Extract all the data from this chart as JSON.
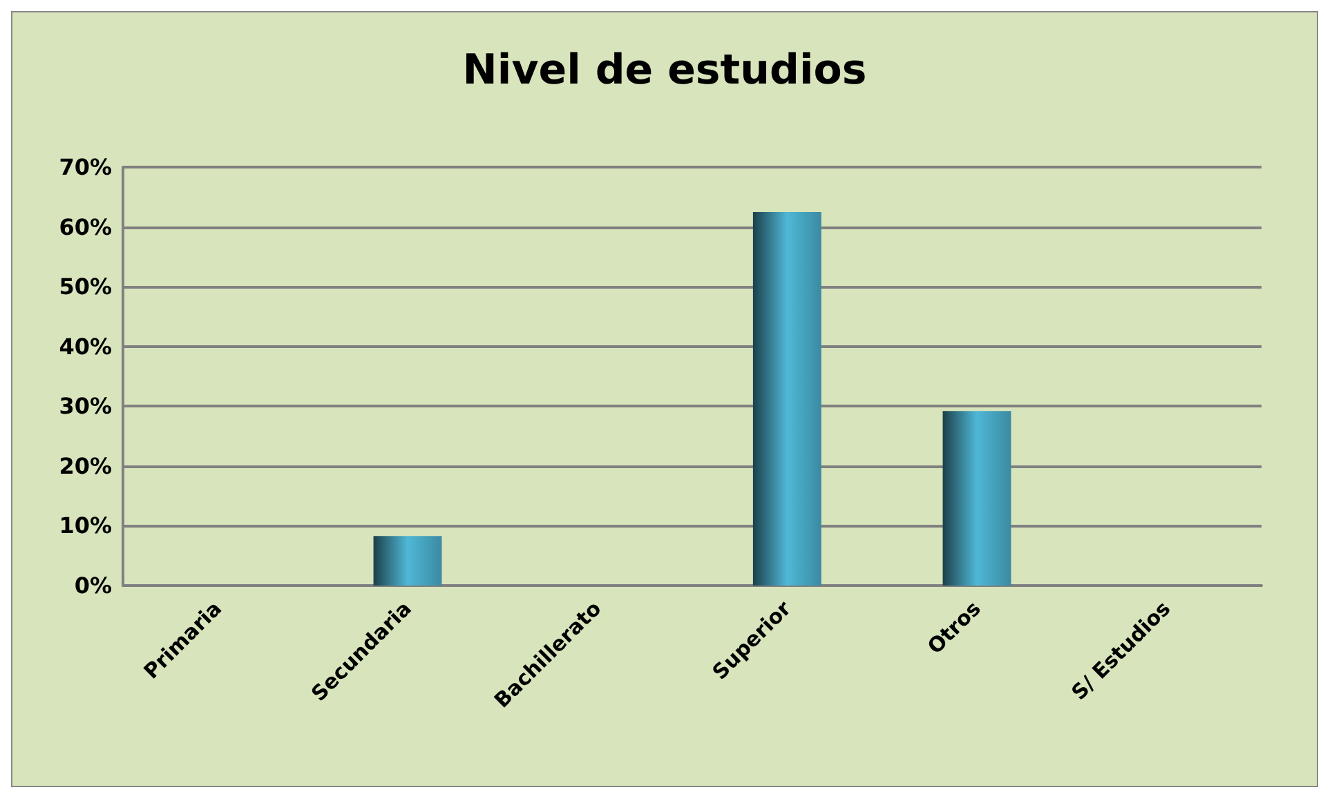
{
  "chart_data": {
    "type": "bar",
    "title": "Nivel de estudios",
    "categories": [
      "Primaria",
      "Secundaria",
      "Bachillerato",
      "Superior",
      "Otros",
      "S/ Estudios"
    ],
    "values": [
      0,
      8.3,
      0,
      62.5,
      29.2,
      0
    ],
    "color": "#4fb8d6",
    "ylim": [
      0,
      70
    ],
    "yticks": [
      {
        "value": 0,
        "label": "0%"
      },
      {
        "value": 10,
        "label": "10%"
      },
      {
        "value": 20,
        "label": "20%"
      },
      {
        "value": 30,
        "label": "30%"
      },
      {
        "value": 40,
        "label": "40%"
      },
      {
        "value": 50,
        "label": "50%"
      },
      {
        "value": 60,
        "label": "60%"
      },
      {
        "value": 70,
        "label": "70%"
      }
    ],
    "grid": "y"
  }
}
